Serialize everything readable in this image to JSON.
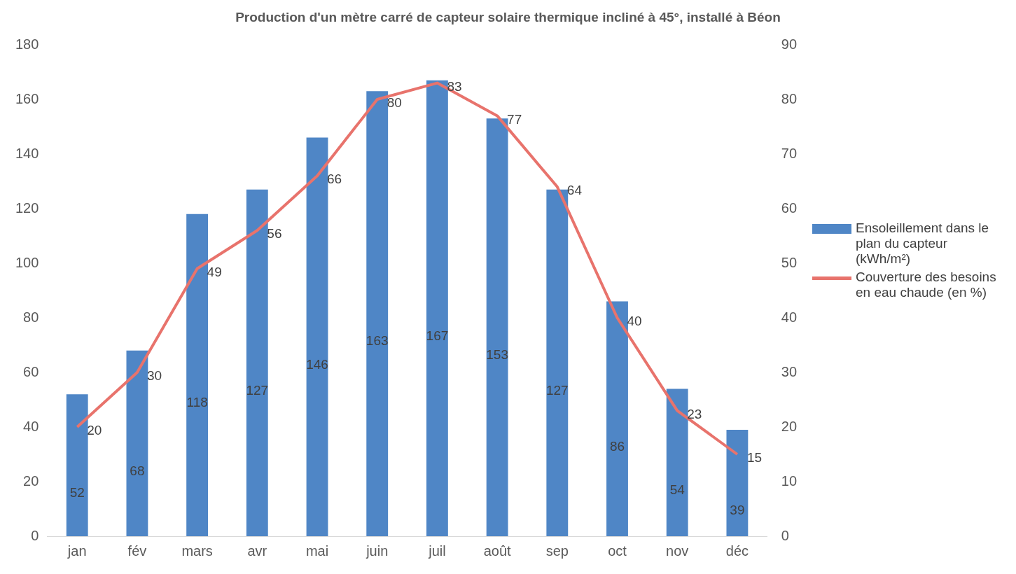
{
  "chart_data": {
    "type": "bar",
    "title": "Production d'un mètre carré de capteur solaire thermique incliné à 45°, installé à Béon",
    "categories": [
      "jan",
      "fév",
      "mars",
      "avr",
      "mai",
      "juin",
      "juil",
      "août",
      "sep",
      "oct",
      "nov",
      "déc"
    ],
    "series": [
      {
        "name": "Ensoleillement dans le plan du capteur (kWh/m²)",
        "color": "#4f86c6",
        "values": [
          52,
          68,
          118,
          127,
          146,
          163,
          167,
          153,
          127,
          86,
          54,
          39
        ]
      },
      {
        "name": "Couverture des besoins en eau chaude (en %)",
        "type": "line",
        "axis": "y2",
        "color": "#e8736c",
        "values": [
          20,
          30,
          49,
          56,
          66,
          80,
          83,
          77,
          64,
          40,
          23,
          15
        ]
      }
    ],
    "ylim": [
      0,
      180
    ],
    "yticks": [
      0,
      20,
      40,
      60,
      80,
      100,
      120,
      140,
      160,
      180
    ],
    "y2lim": [
      0,
      90
    ],
    "y2ticks": [
      0,
      10,
      20,
      30,
      40,
      50,
      60,
      70,
      80,
      90
    ],
    "grid": false,
    "legend": "right",
    "marker": "none",
    "line_style": "solid",
    "data_labels": true
  }
}
